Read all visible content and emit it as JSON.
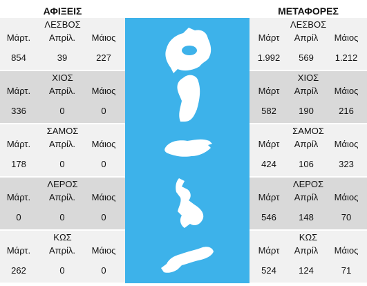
{
  "colors": {
    "sea": "#3db2ea",
    "island": "#ffffff",
    "row_light": "#f1f1f1",
    "row_dark": "#d9d9d9"
  },
  "headers": {
    "arrivals": "ΑΦΙΞΕΙΣ",
    "transfers": "ΜΕΤΑΦΟΡΕΣ"
  },
  "months": [
    "Μάρτ.",
    "Απρίλ.",
    "Μάιος"
  ],
  "months_right": [
    "Μάρτ",
    "Απρίλ",
    "Μάιος"
  ],
  "islands": [
    {
      "name": "ΛΕΣΒΟΣ",
      "arrivals": [
        "854",
        "39",
        "227"
      ],
      "transfers": [
        "1.992",
        "569",
        "1.212"
      ]
    },
    {
      "name": "ΧΙΟΣ",
      "arrivals": [
        "336",
        "0",
        "0"
      ],
      "transfers": [
        "582",
        "190",
        "216"
      ]
    },
    {
      "name": "ΣΑΜΟΣ",
      "arrivals": [
        "178",
        "0",
        "0"
      ],
      "transfers": [
        "424",
        "106",
        "323"
      ]
    },
    {
      "name": "ΛΕΡΟΣ",
      "arrivals": [
        "0",
        "0",
        "0"
      ],
      "transfers": [
        "546",
        "148",
        "70"
      ]
    },
    {
      "name": "ΚΩΣ",
      "arrivals": [
        "262",
        "0",
        "0"
      ],
      "transfers": [
        "524",
        "124",
        "71"
      ]
    }
  ],
  "chart_data": {
    "type": "table",
    "title": "",
    "columns": [
      "Μάρτ.",
      "Απρίλ.",
      "Μάιος"
    ],
    "tables": [
      {
        "name": "ΑΦΙΞΕΙΣ",
        "rows": [
          {
            "island": "ΛΕΣΒΟΣ",
            "values": [
              854,
              39,
              227
            ]
          },
          {
            "island": "ΧΙΟΣ",
            "values": [
              336,
              0,
              0
            ]
          },
          {
            "island": "ΣΑΜΟΣ",
            "values": [
              178,
              0,
              0
            ]
          },
          {
            "island": "ΛΕΡΟΣ",
            "values": [
              0,
              0,
              0
            ]
          },
          {
            "island": "ΚΩΣ",
            "values": [
              262,
              0,
              0
            ]
          }
        ]
      },
      {
        "name": "ΜΕΤΑΦΟΡΕΣ",
        "rows": [
          {
            "island": "ΛΕΣΒΟΣ",
            "values": [
              1992,
              569,
              1212
            ]
          },
          {
            "island": "ΧΙΟΣ",
            "values": [
              582,
              190,
              216
            ]
          },
          {
            "island": "ΣΑΜΟΣ",
            "values": [
              424,
              106,
              323
            ]
          },
          {
            "island": "ΛΕΡΟΣ",
            "values": [
              546,
              148,
              70
            ]
          },
          {
            "island": "ΚΩΣ",
            "values": [
              524,
              124,
              71
            ]
          }
        ]
      }
    ]
  }
}
